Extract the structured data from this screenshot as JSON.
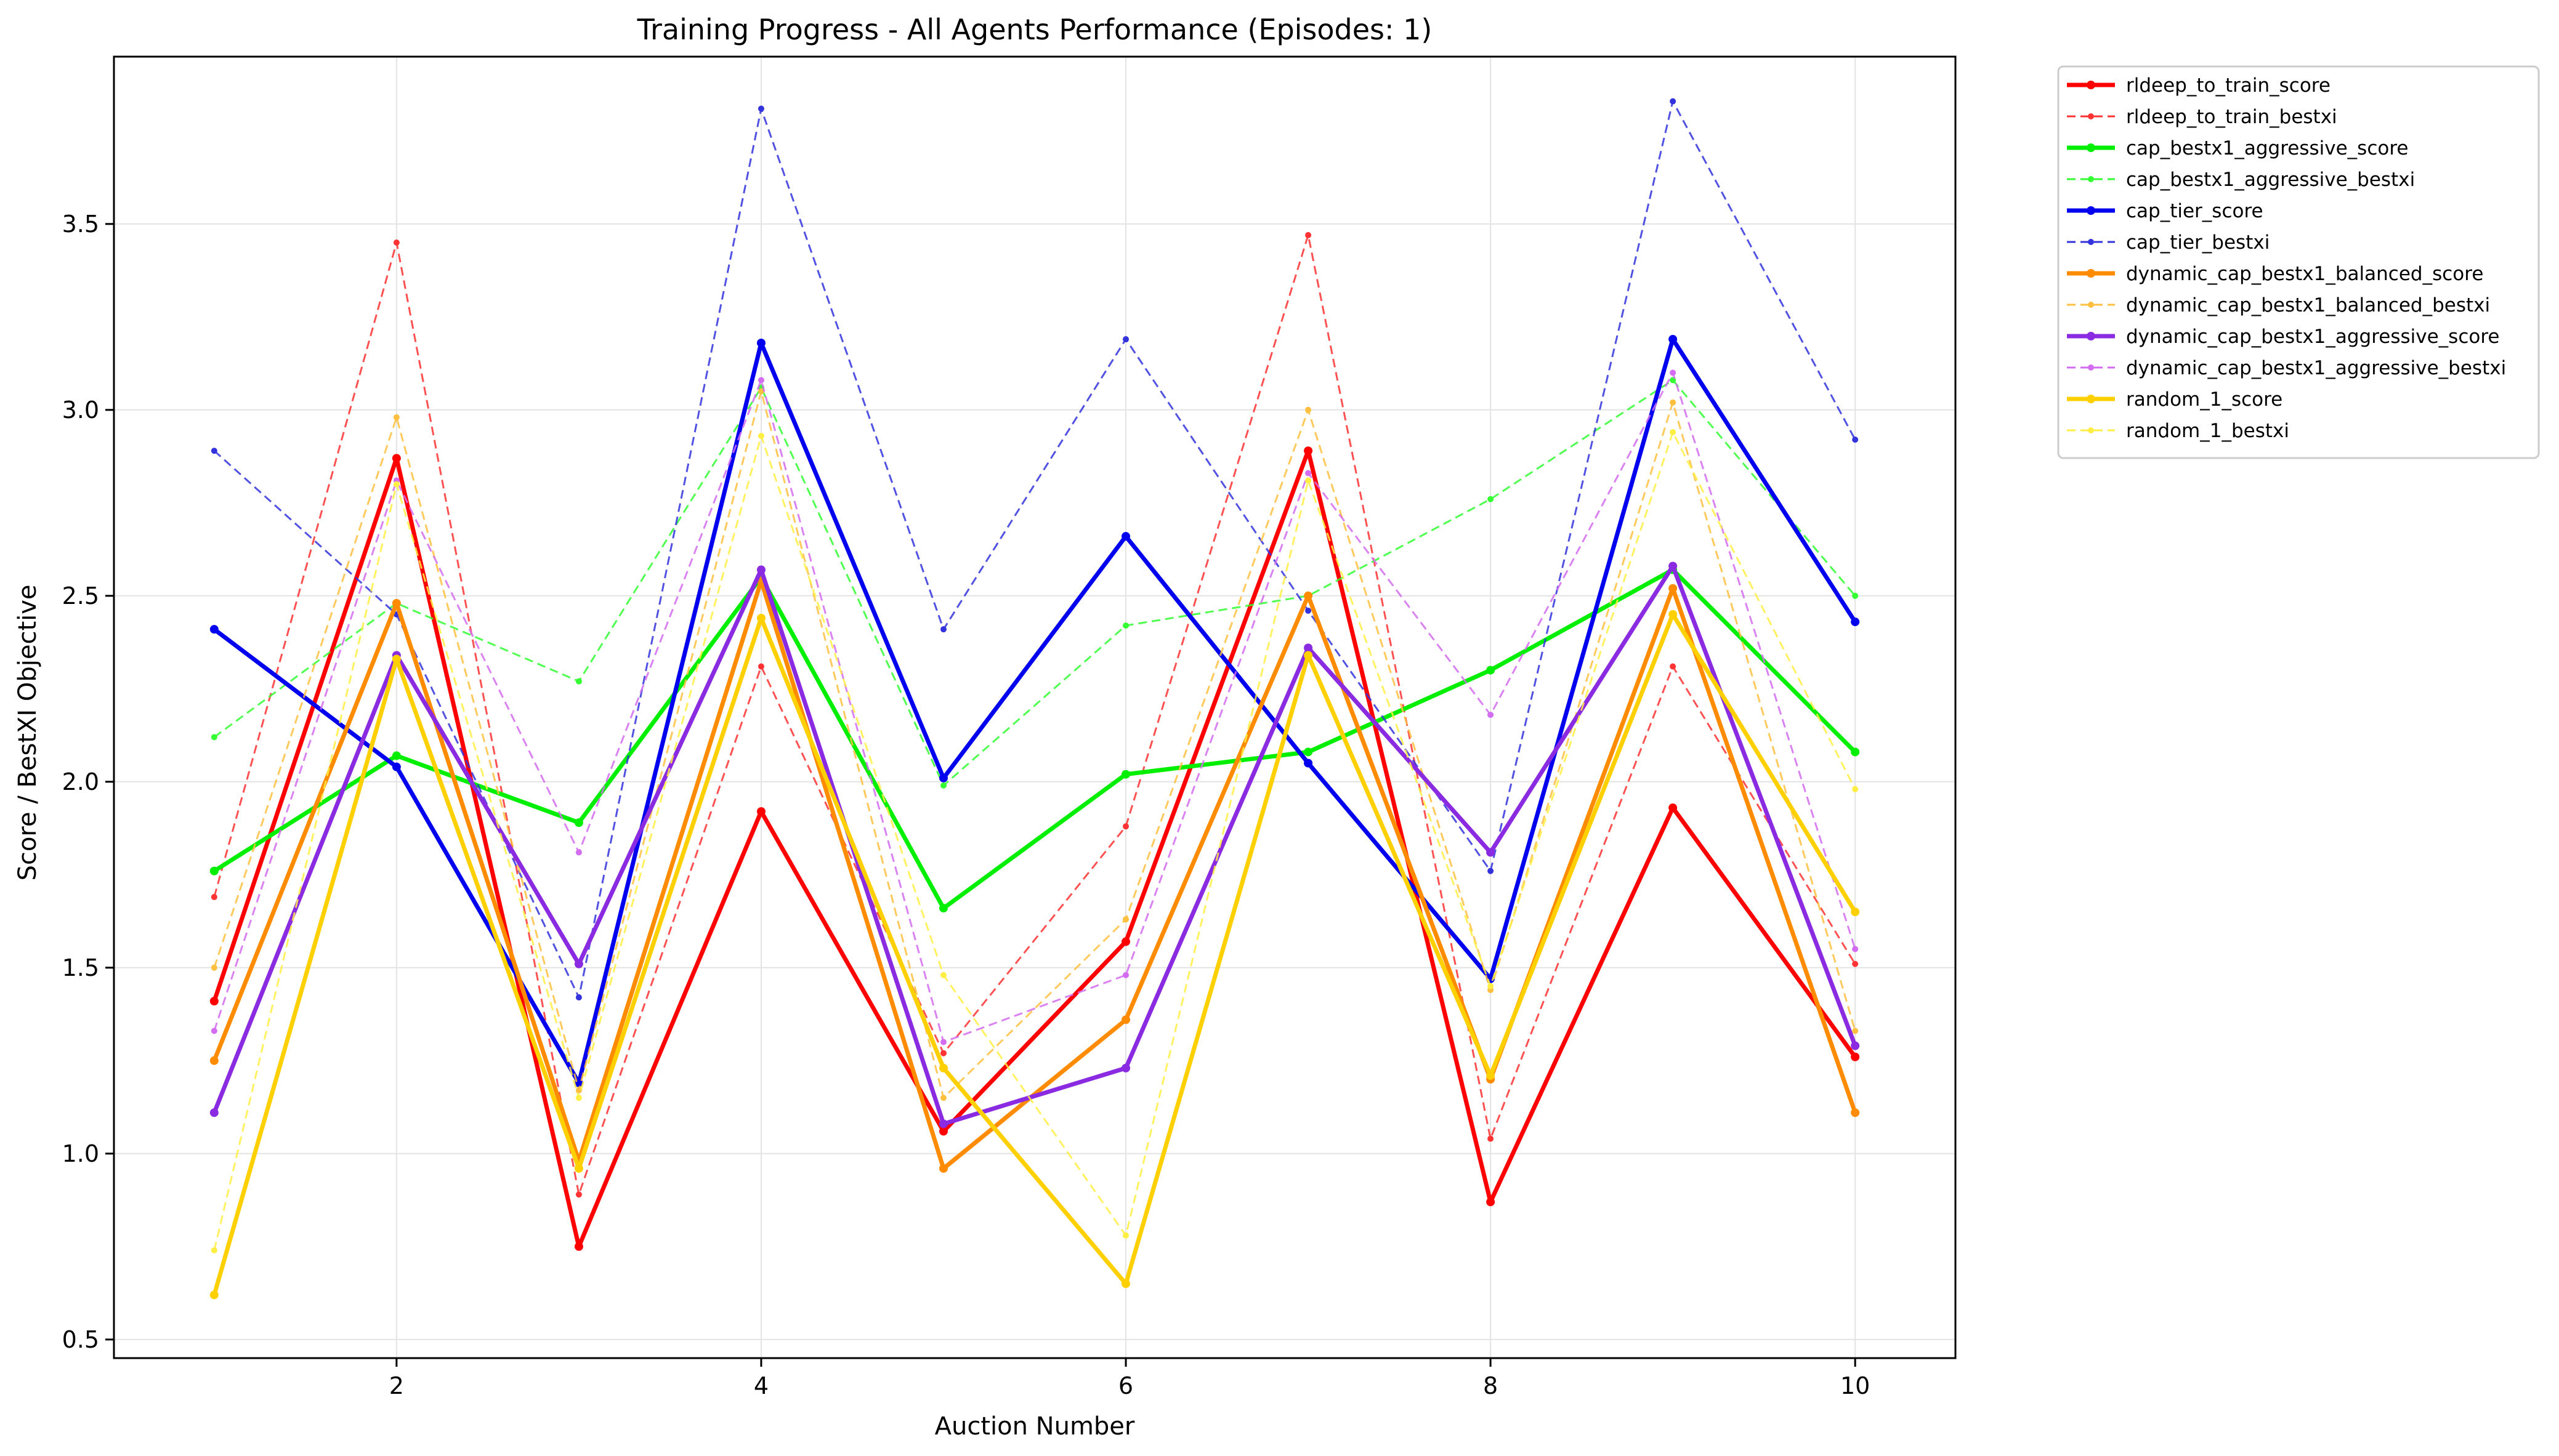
{
  "chart_data": {
    "type": "line",
    "title": "Training Progress - All Agents Performance (Episodes: 1)",
    "xlabel": "Auction Number",
    "ylabel": "Score / BestXI Objective",
    "xlim": [
      0.45,
      10.55
    ],
    "ylim": [
      0.45,
      3.95
    ],
    "x": [
      1,
      2,
      3,
      4,
      5,
      6,
      7,
      8,
      9,
      10
    ],
    "x_ticks": [
      2,
      4,
      6,
      8,
      10
    ],
    "y_ticks": [
      0.5,
      1.0,
      1.5,
      2.0,
      2.5,
      3.0,
      3.5
    ],
    "x_tick_labels": [
      "2",
      "4",
      "6",
      "8",
      "10"
    ],
    "y_tick_labels": [
      "0.5",
      "1.0",
      "1.5",
      "2.0",
      "2.5",
      "3.0",
      "3.5"
    ],
    "grid": true,
    "legend_position": "outside-right",
    "series": [
      {
        "name": "rldeep_to_train_score",
        "style": "solid",
        "color": "#ff0000",
        "values": [
          1.41,
          2.87,
          0.75,
          1.92,
          1.06,
          1.57,
          2.89,
          0.87,
          1.93,
          1.26
        ]
      },
      {
        "name": "rldeep_to_train_bestxi",
        "style": "dashed",
        "color": "#ff3333",
        "values": [
          1.69,
          3.45,
          0.89,
          2.31,
          1.27,
          1.88,
          3.47,
          1.04,
          2.31,
          1.51
        ]
      },
      {
        "name": "cap_bestx1_aggressive_score",
        "style": "solid",
        "color": "#00ee00",
        "values": [
          1.76,
          2.07,
          1.89,
          2.55,
          1.66,
          2.02,
          2.08,
          2.3,
          2.57,
          2.08
        ]
      },
      {
        "name": "cap_bestx1_aggressive_bestxi",
        "style": "dashed",
        "color": "#33ff33",
        "values": [
          2.12,
          2.48,
          2.27,
          3.06,
          1.99,
          2.42,
          2.5,
          2.76,
          3.08,
          2.5
        ]
      },
      {
        "name": "cap_tier_score",
        "style": "solid",
        "color": "#0000ee",
        "values": [
          2.41,
          2.04,
          1.19,
          3.18,
          2.01,
          2.66,
          2.05,
          1.47,
          3.19,
          2.43
        ]
      },
      {
        "name": "cap_tier_bestxi",
        "style": "dashed",
        "color": "#3333dd",
        "values": [
          2.89,
          2.45,
          1.42,
          3.81,
          2.41,
          3.19,
          2.46,
          1.76,
          3.83,
          2.92
        ]
      },
      {
        "name": "dynamic_cap_bestx1_balanced_score",
        "style": "solid",
        "color": "#ff8c00",
        "values": [
          1.25,
          2.48,
          0.98,
          2.54,
          0.96,
          1.36,
          2.5,
          1.2,
          2.52,
          1.11
        ]
      },
      {
        "name": "dynamic_cap_bestx1_balanced_bestxi",
        "style": "dashed",
        "color": "#ffc040",
        "values": [
          1.5,
          2.98,
          1.17,
          3.05,
          1.15,
          1.63,
          3.0,
          1.44,
          3.02,
          1.33
        ]
      },
      {
        "name": "dynamic_cap_bestx1_aggressive_score",
        "style": "solid",
        "color": "#8a2be2",
        "values": [
          1.11,
          2.34,
          1.51,
          2.57,
          1.08,
          1.23,
          2.36,
          1.81,
          2.58,
          1.29
        ]
      },
      {
        "name": "dynamic_cap_bestx1_aggressive_bestxi",
        "style": "dashed",
        "color": "#d36cf0",
        "values": [
          1.33,
          2.81,
          1.81,
          3.08,
          1.3,
          1.48,
          2.83,
          2.18,
          3.1,
          1.55
        ]
      },
      {
        "name": "random_1_score",
        "style": "solid",
        "color": "#ffd000",
        "values": [
          0.62,
          2.33,
          0.96,
          2.44,
          1.23,
          0.65,
          2.34,
          1.21,
          2.45,
          1.65
        ]
      },
      {
        "name": "random_1_bestxi",
        "style": "dashed",
        "color": "#ffee44",
        "values": [
          0.74,
          2.8,
          1.15,
          2.93,
          1.48,
          0.78,
          2.81,
          1.45,
          2.94,
          1.98
        ]
      }
    ]
  }
}
